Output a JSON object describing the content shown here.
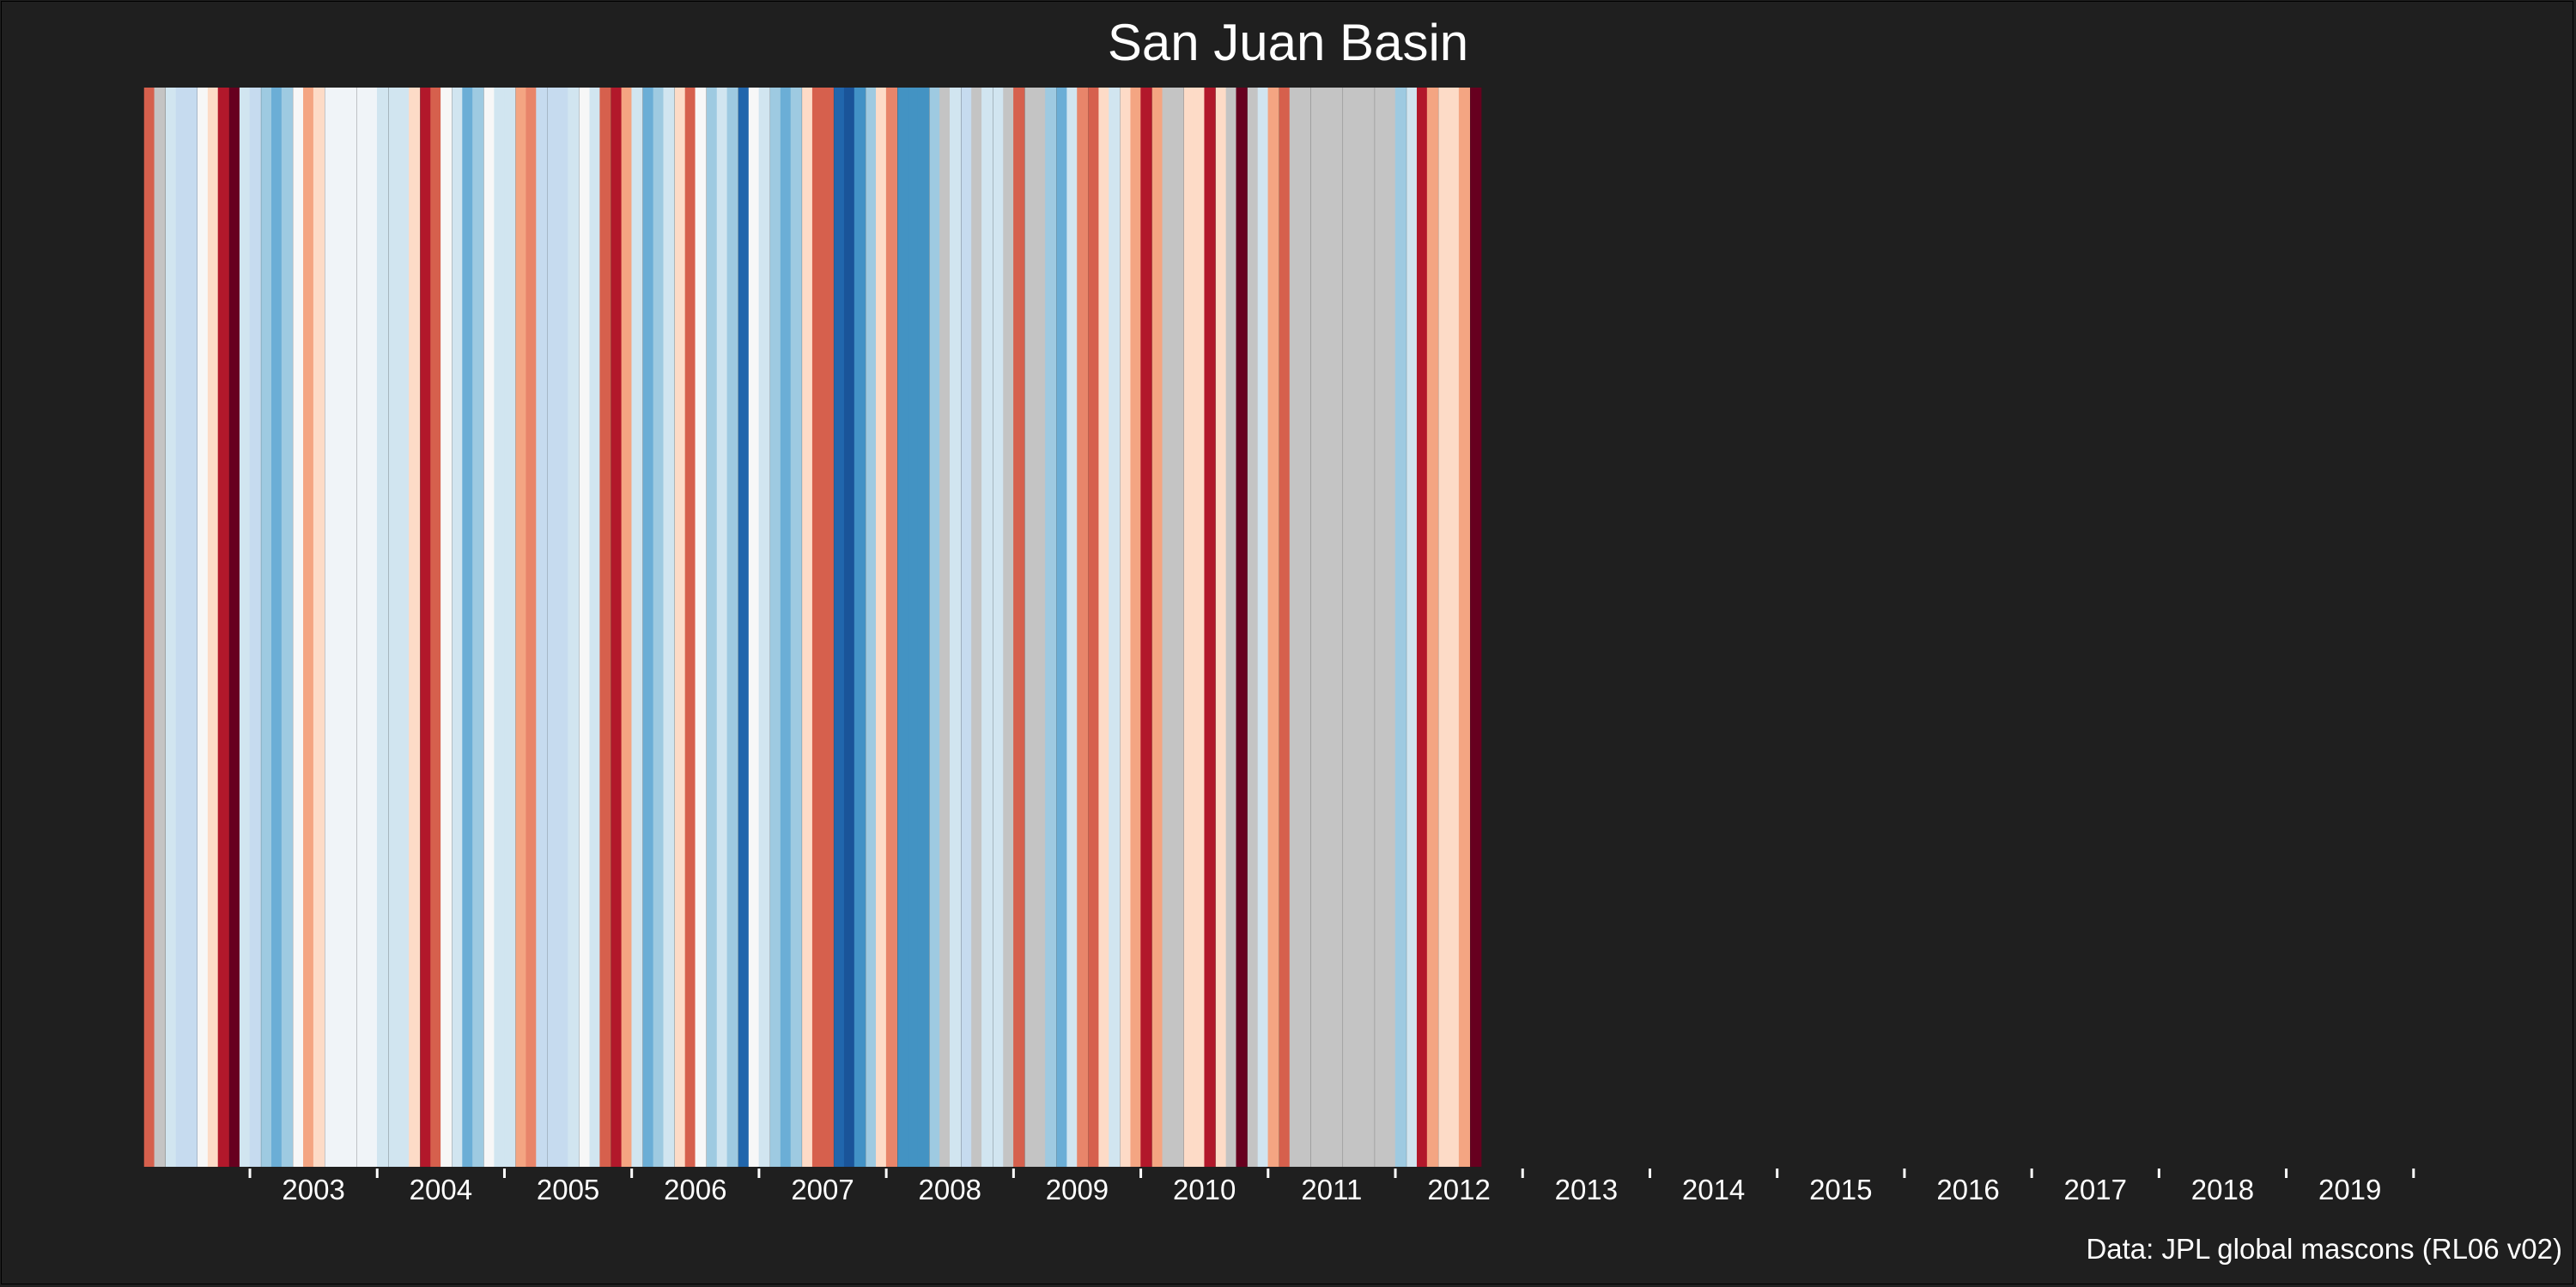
{
  "chart_data": {
    "type": "heatmap",
    "title": "San Juan Basin",
    "caption": "Data: JPL global mascons (RL06 v02)",
    "x_ticks": [
      "2003",
      "2004",
      "2005",
      "2006",
      "2007",
      "2008",
      "2009",
      "2010",
      "2011",
      "2012",
      "2013",
      "2014",
      "2015",
      "2016",
      "2017",
      "2018",
      "2019"
    ],
    "x_range": [
      2002.17,
      2020.17
    ],
    "stripe_step": 0.0833,
    "missing_color": "#c4c4c4",
    "stripes": [
      {
        "x": 2002.21,
        "color": "#d6604d"
      },
      {
        "x": 2002.29,
        "color": "#c4c4c4"
      },
      {
        "x": 2002.38,
        "color": "#d1e5f0"
      },
      {
        "x": 2002.46,
        "color": "#c6dbef"
      },
      {
        "x": 2002.54,
        "color": "#c6dbef"
      },
      {
        "x": 2002.63,
        "color": "#f7f7f7"
      },
      {
        "x": 2002.71,
        "color": "#fddbc7"
      },
      {
        "x": 2002.79,
        "color": "#b2182b"
      },
      {
        "x": 2002.88,
        "color": "#67001f"
      },
      {
        "x": 2002.96,
        "color": "#d1e5f0"
      },
      {
        "x": 2003.04,
        "color": "#c6dbef"
      },
      {
        "x": 2003.13,
        "color": "#9ecae1"
      },
      {
        "x": 2003.21,
        "color": "#6baed6"
      },
      {
        "x": 2003.29,
        "color": "#9ecae1"
      },
      {
        "x": 2003.38,
        "color": "#f7f7f7"
      },
      {
        "x": 2003.46,
        "color": "#f4a582"
      },
      {
        "x": 2003.54,
        "color": "#fddbc7"
      },
      {
        "x": 2003.63,
        "color": "#f0f4f8"
      },
      {
        "x": 2003.71,
        "color": "#f0f4f8"
      },
      {
        "x": 2003.79,
        "color": "#f0f4f8"
      },
      {
        "x": 2003.88,
        "color": "#f0f4f8"
      },
      {
        "x": 2003.96,
        "color": "#f0f4f8"
      },
      {
        "x": 2004.04,
        "color": "#d1e5f0"
      },
      {
        "x": 2004.13,
        "color": "#d1e5f0"
      },
      {
        "x": 2004.21,
        "color": "#d1e5f0"
      },
      {
        "x": 2004.29,
        "color": "#fddbc7"
      },
      {
        "x": 2004.38,
        "color": "#b2182b"
      },
      {
        "x": 2004.46,
        "color": "#d6604d"
      },
      {
        "x": 2004.54,
        "color": "#f7f7f7"
      },
      {
        "x": 2004.63,
        "color": "#d1e5f0"
      },
      {
        "x": 2004.71,
        "color": "#6baed6"
      },
      {
        "x": 2004.79,
        "color": "#9ecae1"
      },
      {
        "x": 2004.88,
        "color": "#f7f7f7"
      },
      {
        "x": 2004.96,
        "color": "#d1e5f0"
      },
      {
        "x": 2005.04,
        "color": "#d1e5f0"
      },
      {
        "x": 2005.13,
        "color": "#f4a582"
      },
      {
        "x": 2005.21,
        "color": "#e8856a"
      },
      {
        "x": 2005.29,
        "color": "#c6dbef"
      },
      {
        "x": 2005.38,
        "color": "#c6dbef"
      },
      {
        "x": 2005.46,
        "color": "#c6dbef"
      },
      {
        "x": 2005.54,
        "color": "#d1e5f0"
      },
      {
        "x": 2005.63,
        "color": "#f7f7f7"
      },
      {
        "x": 2005.71,
        "color": "#d1e5f0"
      },
      {
        "x": 2005.79,
        "color": "#d6604d"
      },
      {
        "x": 2005.88,
        "color": "#b2182b"
      },
      {
        "x": 2005.96,
        "color": "#f4a582"
      },
      {
        "x": 2006.04,
        "color": "#d1e5f0"
      },
      {
        "x": 2006.13,
        "color": "#6baed6"
      },
      {
        "x": 2006.21,
        "color": "#9ecae1"
      },
      {
        "x": 2006.29,
        "color": "#d1e5f0"
      },
      {
        "x": 2006.38,
        "color": "#fddbc7"
      },
      {
        "x": 2006.46,
        "color": "#d6604d"
      },
      {
        "x": 2006.54,
        "color": "#f7f7f7"
      },
      {
        "x": 2006.63,
        "color": "#9ecae1"
      },
      {
        "x": 2006.71,
        "color": "#d1e5f0"
      },
      {
        "x": 2006.79,
        "color": "#9ecae1"
      },
      {
        "x": 2006.88,
        "color": "#2166ac"
      },
      {
        "x": 2006.96,
        "color": "#f7f7f7"
      },
      {
        "x": 2007.04,
        "color": "#d1e5f0"
      },
      {
        "x": 2007.13,
        "color": "#9ecae1"
      },
      {
        "x": 2007.21,
        "color": "#6baed6"
      },
      {
        "x": 2007.29,
        "color": "#9ecae1"
      },
      {
        "x": 2007.38,
        "color": "#fddbc7"
      },
      {
        "x": 2007.46,
        "color": "#d6604d"
      },
      {
        "x": 2007.54,
        "color": "#d6604d"
      },
      {
        "x": 2007.63,
        "color": "#2166ac"
      },
      {
        "x": 2007.71,
        "color": "#1a5499"
      },
      {
        "x": 2007.79,
        "color": "#4292c6"
      },
      {
        "x": 2007.88,
        "color": "#9ecae1"
      },
      {
        "x": 2007.96,
        "color": "#fddbc7"
      },
      {
        "x": 2008.04,
        "color": "#e8856a"
      },
      {
        "x": 2008.13,
        "color": "#4393c3"
      },
      {
        "x": 2008.21,
        "color": "#4393c3"
      },
      {
        "x": 2008.29,
        "color": "#4393c3"
      },
      {
        "x": 2008.38,
        "color": "#9ecae1"
      },
      {
        "x": 2008.46,
        "color": "#c4c4c4"
      },
      {
        "x": 2008.54,
        "color": "#d1e5f0"
      },
      {
        "x": 2008.63,
        "color": "#c6dbef"
      },
      {
        "x": 2008.71,
        "color": "#c4c4c4"
      },
      {
        "x": 2008.79,
        "color": "#d1e5f0"
      },
      {
        "x": 2008.88,
        "color": "#d1e5f0"
      },
      {
        "x": 2008.96,
        "color": "#c4c4c4"
      },
      {
        "x": 2009.04,
        "color": "#d6604d"
      },
      {
        "x": 2009.13,
        "color": "#c4c4c4"
      },
      {
        "x": 2009.21,
        "color": "#c4c4c4"
      },
      {
        "x": 2009.29,
        "color": "#9ecae1"
      },
      {
        "x": 2009.38,
        "color": "#6baed6"
      },
      {
        "x": 2009.46,
        "color": "#d1e5f0"
      },
      {
        "x": 2009.54,
        "color": "#e8856a"
      },
      {
        "x": 2009.63,
        "color": "#d6604d"
      },
      {
        "x": 2009.71,
        "color": "#fddbc7"
      },
      {
        "x": 2009.79,
        "color": "#d1e5f0"
      },
      {
        "x": 2009.88,
        "color": "#fddbc7"
      },
      {
        "x": 2009.96,
        "color": "#f4a582"
      },
      {
        "x": 2010.04,
        "color": "#b2182b"
      },
      {
        "x": 2010.13,
        "color": "#f4a582"
      },
      {
        "x": 2010.21,
        "color": "#c4c4c4"
      },
      {
        "x": 2010.29,
        "color": "#c4c4c4"
      },
      {
        "x": 2010.38,
        "color": "#fddbc7"
      },
      {
        "x": 2010.46,
        "color": "#fddbc7"
      },
      {
        "x": 2010.54,
        "color": "#b2182b"
      },
      {
        "x": 2010.63,
        "color": "#fddbc7"
      },
      {
        "x": 2010.71,
        "color": "#c4c4c4"
      },
      {
        "x": 2010.79,
        "color": "#67001f"
      },
      {
        "x": 2010.88,
        "color": "#c4c4c4"
      },
      {
        "x": 2010.96,
        "color": "#d1e5f0"
      },
      {
        "x": 2011.04,
        "color": "#f4a582"
      },
      {
        "x": 2011.13,
        "color": "#d6604d"
      },
      {
        "x": 2011.21,
        "color": "#c4c4c4"
      },
      {
        "x": 2011.29,
        "color": "#c4c4c4"
      },
      {
        "x": 2011.38,
        "color": "#c4c4c4"
      },
      {
        "x": 2011.46,
        "color": "#c4c4c4"
      },
      {
        "x": 2011.54,
        "color": "#c4c4c4"
      },
      {
        "x": 2011.63,
        "color": "#c4c4c4"
      },
      {
        "x": 2011.71,
        "color": "#c4c4c4"
      },
      {
        "x": 2011.79,
        "color": "#c4c4c4"
      },
      {
        "x": 2011.88,
        "color": "#c4c4c4"
      },
      {
        "x": 2011.96,
        "color": "#c4c4c4"
      },
      {
        "x": 2012.04,
        "color": "#9ecae1"
      },
      {
        "x": 2012.13,
        "color": "#d1e5f0"
      },
      {
        "x": 2012.21,
        "color": "#b2182b"
      },
      {
        "x": 2012.29,
        "color": "#f4a582"
      },
      {
        "x": 2012.38,
        "color": "#fddbc7"
      },
      {
        "x": 2012.46,
        "color": "#fddbc7"
      },
      {
        "x": 2012.54,
        "color": "#f4a582"
      },
      {
        "x": 2012.63,
        "color": "#67001f"
      }
    ]
  }
}
